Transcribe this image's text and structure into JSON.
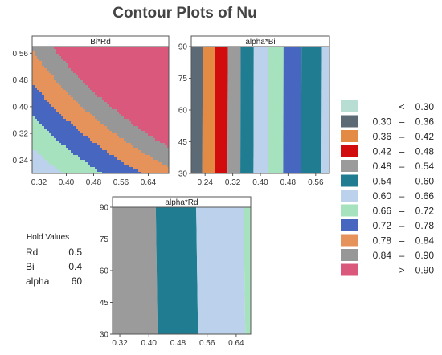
{
  "chart_data": {
    "title": "Contour Plots of Nu",
    "type": "contour",
    "legend": {
      "placement": "right",
      "entries": [
        {
          "label": "<  0.30",
          "lo": "<",
          "hi": "0.30",
          "color": "#b8ddd2"
        },
        {
          "label": "0.30 – 0.36",
          "lo": "0.30",
          "hi": "0.36",
          "color": "#5b6a74"
        },
        {
          "label": "0.36 – 0.42",
          "lo": "0.36",
          "hi": "0.42",
          "color": "#e38b45"
        },
        {
          "label": "0.42 – 0.48",
          "lo": "0.42",
          "hi": "0.48",
          "color": "#d20c0c"
        },
        {
          "label": "0.48 – 0.54",
          "lo": "0.48",
          "hi": "0.54",
          "color": "#9b9b9b"
        },
        {
          "label": "0.54 – 0.60",
          "lo": "0.54",
          "hi": "0.60",
          "color": "#207c90"
        },
        {
          "label": "0.60 – 0.66",
          "lo": "0.60",
          "hi": "0.66",
          "color": "#bcd2ec"
        },
        {
          "label": "0.66 – 0.72",
          "lo": "0.66",
          "hi": "0.72",
          "color": "#a6e2bd"
        },
        {
          "label": "0.72 – 0.78",
          "lo": "0.72",
          "hi": "0.78",
          "color": "#4766bf"
        },
        {
          "label": "0.78 – 0.84",
          "lo": "0.78",
          "hi": "0.84",
          "color": "#e5935b"
        },
        {
          "label": "0.84 – 0.90",
          "lo": "0.84",
          "hi": "0.90",
          "color": "#979797"
        },
        {
          "label": ">  0.90",
          "lo": ">",
          "hi": "0.90",
          "color": "#d9587c"
        }
      ]
    },
    "hold_values": {
      "heading": "Hold Values",
      "items": [
        {
          "name": "Rd",
          "value": "0.5"
        },
        {
          "name": "Bi",
          "value": "0.4"
        },
        {
          "name": "alpha",
          "value": "60"
        }
      ]
    },
    "panels": [
      {
        "title": "Bi*Rd",
        "xlim": [
          0.3,
          0.7
        ],
        "ylim": [
          0.2,
          0.58
        ],
        "xticks": [
          "0.32",
          "0.40",
          "0.48",
          "0.56",
          "0.64"
        ],
        "yticks": [
          "0.24",
          "0.32",
          "0.40",
          "0.48",
          "0.56"
        ],
        "contour_levels": [
          0.3,
          0.36,
          0.42,
          0.48,
          0.54,
          0.6,
          0.66,
          0.72,
          0.78,
          0.84,
          0.9
        ]
      },
      {
        "title": "alpha*Bi",
        "xlim": [
          0.2,
          0.6
        ],
        "ylim": [
          30,
          90
        ],
        "xticks": [
          "0.24",
          "0.32",
          "0.40",
          "0.48",
          "0.56"
        ],
        "yticks": [
          "30",
          "45",
          "60",
          "75",
          "90"
        ],
        "band_bounds_x": [
          {
            "x_bottom": 0.2,
            "x_top": 0.2
          },
          {
            "x_bottom": 0.232,
            "x_top": 0.233
          },
          {
            "x_bottom": 0.268,
            "x_top": 0.269
          },
          {
            "x_bottom": 0.305,
            "x_top": 0.306
          },
          {
            "x_bottom": 0.342,
            "x_top": 0.343
          },
          {
            "x_bottom": 0.38,
            "x_top": 0.381
          },
          {
            "x_bottom": 0.421,
            "x_top": 0.422
          },
          {
            "x_bottom": 0.466,
            "x_top": 0.467
          },
          {
            "x_bottom": 0.518,
            "x_top": 0.519
          },
          {
            "x_bottom": 0.577,
            "x_top": 0.578
          },
          {
            "x_bottom": 0.6,
            "x_top": 0.6
          }
        ],
        "band_levels": [
          "0.30 – 0.36",
          "0.36 – 0.42",
          "0.42 – 0.48",
          "0.48 – 0.54",
          "0.54 – 0.60",
          "0.60 – 0.66",
          "0.66 – 0.72",
          "0.72 – 0.78",
          "0.54 – 0.60",
          "0.60 – 0.66"
        ]
      },
      {
        "title": "alpha*Rd",
        "xlim": [
          0.3,
          0.68
        ],
        "ylim": [
          30,
          90
        ],
        "xticks": [
          "0.32",
          "0.40",
          "0.48",
          "0.56",
          "0.64"
        ],
        "yticks": [
          "30",
          "45",
          "60",
          "75",
          "90"
        ],
        "band_bounds_x": [
          {
            "x_bottom": 0.3,
            "x_top": 0.3
          },
          {
            "x_bottom": 0.424,
            "x_top": 0.419
          },
          {
            "x_bottom": 0.535,
            "x_top": 0.53
          },
          {
            "x_bottom": 0.665,
            "x_top": 0.66
          },
          {
            "x_bottom": 0.68,
            "x_top": 0.68
          }
        ],
        "band_levels": [
          "0.48 – 0.54",
          "0.54 – 0.60",
          "0.60 – 0.66",
          "0.66 – 0.72"
        ]
      }
    ]
  }
}
